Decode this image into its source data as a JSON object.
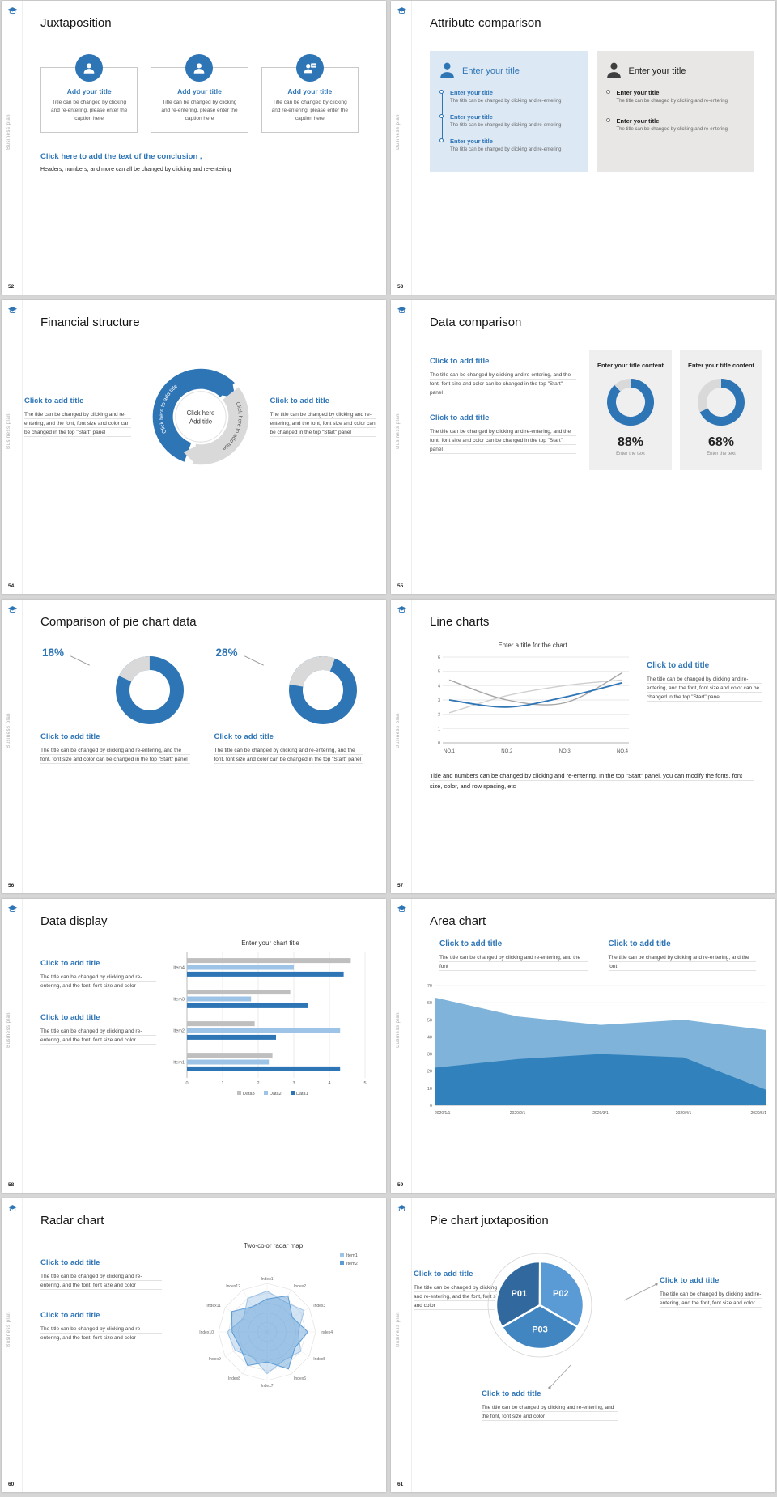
{
  "chrome": {
    "sidebar_label": "Business plan"
  },
  "colors": {
    "accent": "#2e75b6",
    "light_blue": "#9dc3e6",
    "mid_blue": "#5b9bd5",
    "bar_gray": "#bfbfbf",
    "donut_gray": "#d9d9d9"
  },
  "slides": [
    {
      "page": "52",
      "title": "Juxtaposition",
      "cards": [
        {
          "title": "Add your title",
          "caption": "Title can be changed by clicking and re-entering, please enter the caption here"
        },
        {
          "title": "Add your title",
          "caption": "Title can be changed by clicking and re-entering, please enter the caption here"
        },
        {
          "title": "Add your title",
          "caption": "Title can be changed by clicking and re-entering, please enter the caption here"
        }
      ],
      "conclusion_title": "Click here to add the text of the conclusion ,",
      "conclusion_body": "Headers, numbers, and more can all be changed by clicking and re-entering"
    },
    {
      "page": "53",
      "title": "Attribute comparison",
      "left": {
        "header": "Enter your title",
        "items": [
          {
            "title": "Enter your title",
            "body": "The title can be changed by clicking and re-entering"
          },
          {
            "title": "Enter your title",
            "body": "The title can be changed by clicking and re-entering"
          },
          {
            "title": "Enter your title",
            "body": "The title can be changed by clicking and re-entering"
          }
        ]
      },
      "right": {
        "header": "Enter your title",
        "items": [
          {
            "title": "Enter your title",
            "body": "The title can be changed by clicking and re-entering"
          },
          {
            "title": "Enter your title",
            "body": "The title can be changed by clicking and re-entering"
          }
        ]
      }
    },
    {
      "page": "54",
      "title": "Financial structure",
      "left": {
        "heading": "Click to add title",
        "body": "The title can be changed by clicking and re-entering, and the font, font size and color can be changed in the top \"Start\" panel"
      },
      "right": {
        "heading": "Click to add title",
        "body": "The title can be changed by clicking and re-entering, and the font, font size and color can be changed in the top \"Start\" panel"
      },
      "circle": {
        "center_line1": "Click here",
        "center_line2": "Add title",
        "arc_left": "Click here to add title",
        "arc_right": "Click here to add title"
      }
    },
    {
      "page": "55",
      "title": "Data comparison",
      "blocks": [
        {
          "heading": "Click to add title",
          "body": "The title can be changed by clicking and re-entering, and the font, font size and color can be changed in the top \"Start\" panel"
        },
        {
          "heading": "Click to add title",
          "body": "The title can be changed by clicking and re-entering, and the font, font size and color can be changed in the top \"Start\" panel"
        }
      ],
      "cards": [
        {
          "header": "Enter your title content",
          "percent": 88,
          "percent_label": "88%",
          "caption": "Enter the text"
        },
        {
          "header": "Enter your title content",
          "percent": 68,
          "percent_label": "68%",
          "caption": "Enter the text"
        }
      ]
    },
    {
      "page": "56",
      "title": "Comparison of pie chart data",
      "charts": [
        {
          "label": "18%",
          "percent": 18,
          "heading": "Click to add title",
          "body": "The title can be changed by clicking and re-entering, and the font, font size and color can be changed in the top \"Start\" panel"
        },
        {
          "label": "28%",
          "percent": 28,
          "heading": "Click to add title",
          "body": "The title can be changed by clicking and re-entering, and the font, font size and color can be changed in the top \"Start\" panel"
        }
      ]
    },
    {
      "page": "57",
      "title": "Line charts",
      "side": {
        "heading": "Click to add title",
        "body": "The title can be changed by clicking and re-entering, and the font, font size and color can be changed in the top \"Start\" panel"
      },
      "footer": "Title and numbers can be changed by clicking and re-entering. In the top \"Start\" panel, you can modify the fonts, font size, color, and row spacing, etc",
      "chart_data": {
        "type": "line",
        "title": "Enter a title for the chart",
        "categories": [
          "NO.1",
          "NO.2",
          "NO.3",
          "NO.4"
        ],
        "ylim": [
          0,
          6
        ],
        "yticks": [
          0,
          1,
          2,
          3,
          4,
          5,
          6
        ],
        "grid": true,
        "series": [
          {
            "name": "blue",
            "color": "#2e75b6",
            "values": [
              3.0,
              2.5,
              3.2,
              4.2
            ]
          },
          {
            "name": "gray1",
            "color": "#a6a6a6",
            "values": [
              4.4,
              3.0,
              2.8,
              4.9
            ]
          },
          {
            "name": "gray2",
            "color": "#cfcfcf",
            "values": [
              2.1,
              3.3,
              4.0,
              4.4
            ]
          }
        ]
      }
    },
    {
      "page": "58",
      "title": "Data display",
      "blocks": [
        {
          "heading": "Click to add title",
          "body": "The title can be changed by clicking and re-entering, and the font, font size and color"
        },
        {
          "heading": "Click to add title",
          "body": "The title can be changed by clicking and re-entering, and the font, font size and color"
        }
      ],
      "chart_data": {
        "type": "bar",
        "orientation": "horizontal",
        "title": "Enter your chart title",
        "categories": [
          "Item1",
          "Item2",
          "Item3",
          "Item4"
        ],
        "xlim": [
          0,
          5
        ],
        "xticks": [
          0,
          1,
          2,
          3,
          4,
          5
        ],
        "series": [
          {
            "name": "Data1",
            "color": "#2e75b6",
            "values": [
              4.3,
              2.5,
              3.4,
              4.4
            ]
          },
          {
            "name": "Data2",
            "color": "#9dc3e6",
            "values": [
              2.3,
              4.3,
              1.8,
              3.0
            ]
          },
          {
            "name": "Data3",
            "color": "#bfbfbf",
            "values": [
              2.4,
              1.9,
              2.9,
              4.6
            ]
          }
        ],
        "legend": [
          "Data3",
          "Data2",
          "Data1"
        ]
      }
    },
    {
      "page": "59",
      "title": "Area chart",
      "blocks": [
        {
          "heading": "Click to add title",
          "body": "The title can be changed by clicking and re-entering, and the font"
        },
        {
          "heading": "Click to add title",
          "body": "The title can be changed by clicking and re-entering, and the font"
        }
      ],
      "chart_data": {
        "type": "area",
        "categories": [
          "2020/1/1",
          "2020/2/1",
          "2020/3/1",
          "2020/4/1",
          "2020/5/1"
        ],
        "ylim": [
          0,
          70
        ],
        "yticks": [
          0,
          10,
          20,
          30,
          40,
          50,
          60,
          70
        ],
        "series": [
          {
            "name": "back",
            "color": "#7fb3d9",
            "values": [
              63,
              52,
              47,
              50,
              44
            ]
          },
          {
            "name": "front",
            "color": "#3181bd",
            "values": [
              22,
              27,
              30,
              28,
              9
            ]
          }
        ]
      }
    },
    {
      "page": "60",
      "title": "Radar chart",
      "blocks": [
        {
          "heading": "Click to add title",
          "body": "The title can be changed by clicking and re-entering, and the font, font size and color"
        },
        {
          "heading": "Click to add title",
          "body": "The title can be changed by clicking and re-entering, and the font, font size and color"
        }
      ],
      "chart_data": {
        "type": "radar",
        "title": "Two-color radar map",
        "rmax": 5,
        "axes": [
          "Index1",
          "Index2",
          "Index3",
          "Index4",
          "Index5",
          "Index6",
          "Index7",
          "Index8",
          "Index9",
          "Index10",
          "Index11",
          "Index12"
        ],
        "series": [
          {
            "name": "Item1",
            "color": "#9dc3e6",
            "values": [
              4.2,
              3.6,
              4.4,
              3.2,
              4.0,
              3.4,
              4.3,
              3.0,
              3.8,
              4.1,
              2.8,
              4.0
            ]
          },
          {
            "name": "Item2",
            "color": "#5b9bd5",
            "values": [
              3.4,
              4.3,
              3.0,
              4.2,
              3.3,
              4.4,
              3.1,
              4.0,
              3.2,
              3.6,
              4.2,
              3.0
            ]
          }
        ]
      }
    },
    {
      "page": "61",
      "title": "Pie chart juxtaposition",
      "callouts": [
        {
          "heading": "Click to add title",
          "body": "The title can be changed by clicking and re-entering, and the font, font size and color"
        },
        {
          "heading": "Click to add title",
          "body": "The title can be changed by clicking and re-entering, and the font, font size and color"
        },
        {
          "heading": "Click to add title",
          "body": "The title can be changed by clicking and re-entering, and the font, font size and color"
        }
      ],
      "chart_data": {
        "type": "pie",
        "labels": [
          "P01",
          "P02",
          "P03"
        ],
        "values": [
          33.4,
          33.3,
          33.3
        ],
        "colors": [
          "#31699e",
          "#5b9bd5",
          "#4186c0"
        ],
        "start_deg": 150
      }
    }
  ]
}
